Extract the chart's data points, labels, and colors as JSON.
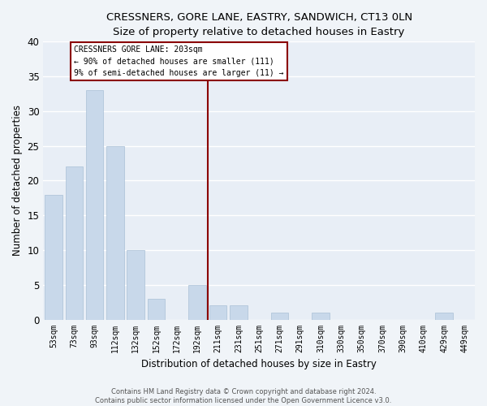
{
  "title": "CRESSNERS, GORE LANE, EASTRY, SANDWICH, CT13 0LN",
  "subtitle": "Size of property relative to detached houses in Eastry",
  "xlabel": "Distribution of detached houses by size in Eastry",
  "ylabel": "Number of detached properties",
  "bar_color": "#c8d8ea",
  "bar_edgecolor": "#aac0d6",
  "bg_color": "#e8eef6",
  "fig_color": "#f0f4f8",
  "grid_color": "#ffffff",
  "categories": [
    "53sqm",
    "73sqm",
    "93sqm",
    "112sqm",
    "132sqm",
    "152sqm",
    "172sqm",
    "192sqm",
    "211sqm",
    "231sqm",
    "251sqm",
    "271sqm",
    "291sqm",
    "310sqm",
    "330sqm",
    "350sqm",
    "370sqm",
    "390sqm",
    "410sqm",
    "429sqm",
    "449sqm"
  ],
  "values": [
    18,
    22,
    33,
    25,
    10,
    3,
    0,
    5,
    2,
    2,
    0,
    1,
    0,
    1,
    0,
    0,
    0,
    0,
    0,
    1,
    0
  ],
  "vline_x": 7.5,
  "vline_color": "#8b0000",
  "annotation_title": "CRESSNERS GORE LANE: 203sqm",
  "annotation_line1": "← 90% of detached houses are smaller (111)",
  "annotation_line2": "9% of semi-detached houses are larger (11) →",
  "ylim": [
    0,
    40
  ],
  "yticks": [
    0,
    5,
    10,
    15,
    20,
    25,
    30,
    35,
    40
  ],
  "footer_line1": "Contains HM Land Registry data © Crown copyright and database right 2024.",
  "footer_line2": "Contains public sector information licensed under the Open Government Licence v3.0."
}
